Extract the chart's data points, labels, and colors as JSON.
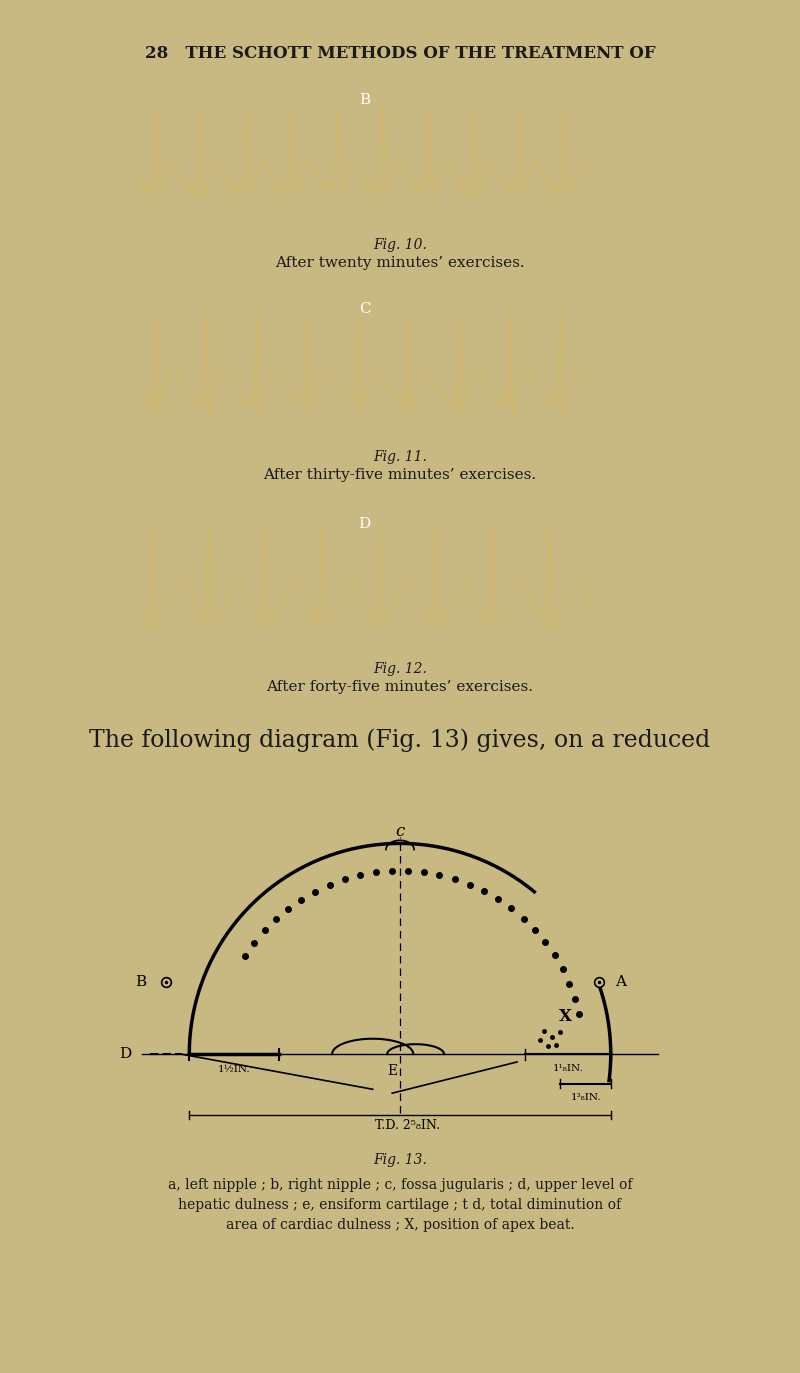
{
  "bg_color": "#c8b882",
  "page_header": "28   THE SCHOTT METHODS OF THE TREATMENT OF",
  "ecg_bg": "#0a0a0a",
  "ecg_line_color": "#d4b96a",
  "fig10_label": "B",
  "fig11_label": "C",
  "fig12_label": "D",
  "fig10_caption": "Fig. 10.",
  "fig10_subcaption": "After twenty minutes’ exercises.",
  "fig11_caption": "Fig. 11.",
  "fig11_subcaption": "After thirty-five minutes’ exercises.",
  "fig12_caption": "Fig. 12.",
  "fig12_subcaption": "After forty-five minutes’ exercises.",
  "following_text": "The following diagram (Fig. 13) gives, on a reduced",
  "fig13_caption": "Fig. 13.",
  "legend_line1": "a, left nipple ; b, right nipple ; c, fossa jugularis ; d, upper level of",
  "legend_line2": "hepatic dulness ; e, ensiform cartilage ; t d, total diminution of",
  "legend_line3": "area of cardiac dulness ; X, position of apex beat.",
  "c_label": "c",
  "e_label": "E",
  "x_label": "X",
  "b_label": "B",
  "a_label": "A",
  "d_label": "D"
}
